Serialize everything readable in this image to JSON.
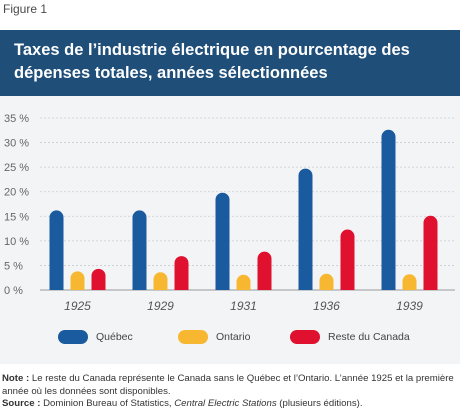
{
  "figure_label": "Figure 1",
  "note": {
    "label": "Note :",
    "text": "Le reste du Canada représente le Canada sans le Québec et l’Ontario. L’année 1925 et la première année où les données sont disponibles."
  },
  "source": {
    "label": "Source :",
    "text_before": "Dominion Bureau of Statistics,",
    "italic": "Central Electric Stations",
    "text_after": "(plusieurs éditions)."
  },
  "colors": {
    "title_bg": "#1f4e79",
    "Québec": "#1a5a9e",
    "Ontario": "#f7b731",
    "Reste du Canada": "#e0102f"
  },
  "chart_data": {
    "type": "bar",
    "title": "Taxes de l’industrie électrique en pourcentage des dépenses totales, années sélectionnées",
    "categories": [
      "1925",
      "1929",
      "1931",
      "1936",
      "1939"
    ],
    "series": [
      {
        "name": "Québec",
        "values": [
          16.2,
          16.2,
          19.8,
          24.7,
          32.6
        ]
      },
      {
        "name": "Ontario",
        "values": [
          3.8,
          3.6,
          3.1,
          3.3,
          3.2
        ]
      },
      {
        "name": "Reste du Canada",
        "values": [
          4.3,
          6.9,
          7.8,
          12.3,
          15.1
        ]
      }
    ],
    "ylim": [
      0,
      35
    ],
    "yticks": [
      "0 %",
      "5 %",
      "10 %",
      "15 %",
      "20 %",
      "25 %",
      "30 %",
      "35 %"
    ],
    "grid": true,
    "legend": "bottom"
  }
}
